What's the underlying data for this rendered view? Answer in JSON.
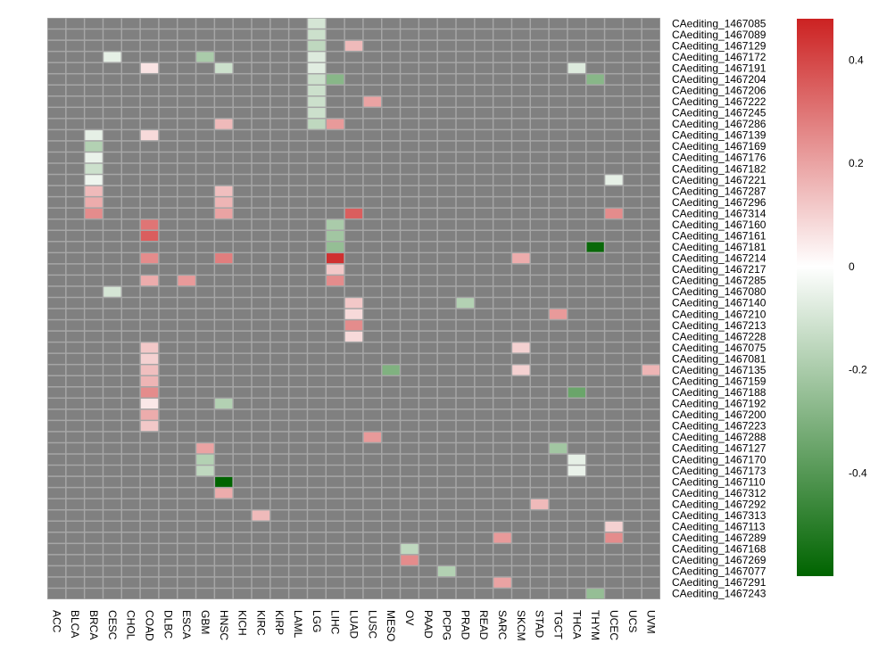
{
  "chart_data": {
    "type": "heatmap",
    "title": "",
    "xlabel": "",
    "ylabel": "",
    "columns": [
      "ACC",
      "BLCA",
      "BRCA",
      "CESC",
      "CHOL",
      "COAD",
      "DLBC",
      "ESCA",
      "GBM",
      "HNSC",
      "KICH",
      "KIRC",
      "KIRP",
      "LAML",
      "LGG",
      "LIHC",
      "LUAD",
      "LUSC",
      "MESO",
      "OV",
      "PAAD",
      "PCPG",
      "PRAD",
      "READ",
      "SARC",
      "SKCM",
      "STAD",
      "TGCT",
      "THCA",
      "THYM",
      "UCEC",
      "UCS",
      "UVM"
    ],
    "rows": [
      "CAediting_1467085",
      "CAediting_1467089",
      "CAediting_1467129",
      "CAediting_1467172",
      "CAediting_1467191",
      "CAediting_1467204",
      "CAediting_1467206",
      "CAediting_1467222",
      "CAediting_1467245",
      "CAediting_1467286",
      "CAediting_1467139",
      "CAediting_1467169",
      "CAediting_1467176",
      "CAediting_1467182",
      "CAediting_1467221",
      "CAediting_1467287",
      "CAediting_1467296",
      "CAediting_1467314",
      "CAediting_1467160",
      "CAediting_1467161",
      "CAediting_1467181",
      "CAediting_1467214",
      "CAediting_1467217",
      "CAediting_1467285",
      "CAediting_1467080",
      "CAediting_1467140",
      "CAediting_1467210",
      "CAediting_1467213",
      "CAediting_1467228",
      "CAediting_1467075",
      "CAediting_1467081",
      "CAediting_1467135",
      "CAediting_1467159",
      "CAediting_1467188",
      "CAediting_1467192",
      "CAediting_1467200",
      "CAediting_1467223",
      "CAediting_1467288",
      "CAediting_1467127",
      "CAediting_1467170",
      "CAediting_1467173",
      "CAediting_1467110",
      "CAediting_1467312",
      "CAediting_1467292",
      "CAediting_1467313",
      "CAediting_1467113",
      "CAediting_1467289",
      "CAediting_1467168",
      "CAediting_1467269",
      "CAediting_1467077",
      "CAediting_1467291",
      "CAediting_1467243"
    ],
    "values": [
      {
        "row": "CAediting_1467085",
        "col": "LGG",
        "value": -0.1
      },
      {
        "row": "CAediting_1467089",
        "col": "LGG",
        "value": -0.12
      },
      {
        "row": "CAediting_1467129",
        "col": "LGG",
        "value": -0.15
      },
      {
        "row": "CAediting_1467129",
        "col": "LUAD",
        "value": 0.15
      },
      {
        "row": "CAediting_1467172",
        "col": "CESC",
        "value": -0.06
      },
      {
        "row": "CAediting_1467172",
        "col": "GBM",
        "value": -0.2
      },
      {
        "row": "CAediting_1467172",
        "col": "LGG",
        "value": -0.08
      },
      {
        "row": "CAediting_1467191",
        "col": "COAD",
        "value": 0.06
      },
      {
        "row": "CAediting_1467191",
        "col": "HNSC",
        "value": -0.12
      },
      {
        "row": "CAediting_1467191",
        "col": "LGG",
        "value": -0.07
      },
      {
        "row": "CAediting_1467191",
        "col": "THCA",
        "value": -0.08
      },
      {
        "row": "CAediting_1467204",
        "col": "LGG",
        "value": -0.12
      },
      {
        "row": "CAediting_1467204",
        "col": "LIHC",
        "value": -0.28
      },
      {
        "row": "CAediting_1467204",
        "col": "THYM",
        "value": -0.28
      },
      {
        "row": "CAediting_1467206",
        "col": "LGG",
        "value": -0.12
      },
      {
        "row": "CAediting_1467222",
        "col": "LGG",
        "value": -0.12
      },
      {
        "row": "CAediting_1467222",
        "col": "LUSC",
        "value": 0.2
      },
      {
        "row": "CAediting_1467245",
        "col": "LGG",
        "value": -0.12
      },
      {
        "row": "CAediting_1467286",
        "col": "HNSC",
        "value": 0.15
      },
      {
        "row": "CAediting_1467286",
        "col": "LGG",
        "value": -0.15
      },
      {
        "row": "CAediting_1467286",
        "col": "LIHC",
        "value": 0.22
      },
      {
        "row": "CAediting_1467139",
        "col": "BRCA",
        "value": -0.06
      },
      {
        "row": "CAediting_1467139",
        "col": "COAD",
        "value": 0.08
      },
      {
        "row": "CAediting_1467169",
        "col": "BRCA",
        "value": -0.18
      },
      {
        "row": "CAediting_1467176",
        "col": "BRCA",
        "value": -0.05
      },
      {
        "row": "CAediting_1467182",
        "col": "BRCA",
        "value": -0.12
      },
      {
        "row": "CAediting_1467221",
        "col": "BRCA",
        "value": -0.04
      },
      {
        "row": "CAediting_1467221",
        "col": "UCEC",
        "value": -0.06
      },
      {
        "row": "CAediting_1467287",
        "col": "BRCA",
        "value": 0.15
      },
      {
        "row": "CAediting_1467287",
        "col": "HNSC",
        "value": 0.14
      },
      {
        "row": "CAediting_1467296",
        "col": "BRCA",
        "value": 0.18
      },
      {
        "row": "CAediting_1467296",
        "col": "HNSC",
        "value": 0.16
      },
      {
        "row": "CAediting_1467314",
        "col": "BRCA",
        "value": 0.25
      },
      {
        "row": "CAediting_1467314",
        "col": "HNSC",
        "value": 0.2
      },
      {
        "row": "CAediting_1467314",
        "col": "LUAD",
        "value": 0.35
      },
      {
        "row": "CAediting_1467314",
        "col": "UCEC",
        "value": 0.25
      },
      {
        "row": "CAediting_1467160",
        "col": "COAD",
        "value": 0.3
      },
      {
        "row": "CAediting_1467160",
        "col": "LIHC",
        "value": -0.2
      },
      {
        "row": "CAediting_1467161",
        "col": "COAD",
        "value": 0.35
      },
      {
        "row": "CAediting_1467161",
        "col": "LIHC",
        "value": -0.22
      },
      {
        "row": "CAediting_1467181",
        "col": "LIHC",
        "value": -0.25
      },
      {
        "row": "CAediting_1467181",
        "col": "THYM",
        "value": -0.58
      },
      {
        "row": "CAediting_1467214",
        "col": "COAD",
        "value": 0.25
      },
      {
        "row": "CAediting_1467214",
        "col": "HNSC",
        "value": 0.28
      },
      {
        "row": "CAediting_1467214",
        "col": "LIHC",
        "value": 0.45
      },
      {
        "row": "CAediting_1467214",
        "col": "SKCM",
        "value": 0.18
      },
      {
        "row": "CAediting_1467217",
        "col": "LIHC",
        "value": 0.12
      },
      {
        "row": "CAediting_1467285",
        "col": "COAD",
        "value": 0.18
      },
      {
        "row": "CAediting_1467285",
        "col": "ESCA",
        "value": 0.22
      },
      {
        "row": "CAediting_1467285",
        "col": "LIHC",
        "value": 0.25
      },
      {
        "row": "CAediting_1467080",
        "col": "CESC",
        "value": -0.1
      },
      {
        "row": "CAediting_1467140",
        "col": "LUAD",
        "value": 0.12
      },
      {
        "row": "CAediting_1467140",
        "col": "PRAD",
        "value": -0.18
      },
      {
        "row": "CAediting_1467210",
        "col": "LUAD",
        "value": 0.08
      },
      {
        "row": "CAediting_1467210",
        "col": "TGCT",
        "value": 0.22
      },
      {
        "row": "CAediting_1467213",
        "col": "LUAD",
        "value": 0.25
      },
      {
        "row": "CAediting_1467228",
        "col": "LUAD",
        "value": 0.08
      },
      {
        "row": "CAediting_1467075",
        "col": "COAD",
        "value": 0.12
      },
      {
        "row": "CAediting_1467075",
        "col": "SKCM",
        "value": 0.1
      },
      {
        "row": "CAediting_1467081",
        "col": "COAD",
        "value": 0.1
      },
      {
        "row": "CAediting_1467135",
        "col": "COAD",
        "value": 0.14
      },
      {
        "row": "CAediting_1467135",
        "col": "MESO",
        "value": -0.3
      },
      {
        "row": "CAediting_1467135",
        "col": "SKCM",
        "value": 0.1
      },
      {
        "row": "CAediting_1467135",
        "col": "UVM",
        "value": 0.16
      },
      {
        "row": "CAediting_1467159",
        "col": "COAD",
        "value": 0.16
      },
      {
        "row": "CAediting_1467188",
        "col": "COAD",
        "value": 0.25
      },
      {
        "row": "CAediting_1467188",
        "col": "THCA",
        "value": -0.35
      },
      {
        "row": "CAediting_1467192",
        "col": "COAD",
        "value": 0.05
      },
      {
        "row": "CAediting_1467192",
        "col": "HNSC",
        "value": -0.18
      },
      {
        "row": "CAediting_1467200",
        "col": "COAD",
        "value": 0.18
      },
      {
        "row": "CAediting_1467223",
        "col": "COAD",
        "value": 0.12
      },
      {
        "row": "CAediting_1467288",
        "col": "LUSC",
        "value": 0.22
      },
      {
        "row": "CAediting_1467127",
        "col": "GBM",
        "value": 0.2
      },
      {
        "row": "CAediting_1467127",
        "col": "TGCT",
        "value": -0.22
      },
      {
        "row": "CAediting_1467170",
        "col": "GBM",
        "value": -0.18
      },
      {
        "row": "CAediting_1467170",
        "col": "THCA",
        "value": -0.06
      },
      {
        "row": "CAediting_1467173",
        "col": "GBM",
        "value": -0.15
      },
      {
        "row": "CAediting_1467173",
        "col": "THCA",
        "value": -0.05
      },
      {
        "row": "CAediting_1467110",
        "col": "HNSC",
        "value": -0.6
      },
      {
        "row": "CAediting_1467312",
        "col": "HNSC",
        "value": 0.18
      },
      {
        "row": "CAediting_1467292",
        "col": "STAD",
        "value": 0.15
      },
      {
        "row": "CAediting_1467313",
        "col": "KIRC",
        "value": 0.15
      },
      {
        "row": "CAediting_1467113",
        "col": "UCEC",
        "value": 0.1
      },
      {
        "row": "CAediting_1467289",
        "col": "SARC",
        "value": 0.22
      },
      {
        "row": "CAediting_1467289",
        "col": "UCEC",
        "value": 0.25
      },
      {
        "row": "CAediting_1467168",
        "col": "OV",
        "value": -0.15
      },
      {
        "row": "CAediting_1467269",
        "col": "OV",
        "value": 0.25
      },
      {
        "row": "CAediting_1467077",
        "col": "PCPG",
        "value": -0.18
      },
      {
        "row": "CAediting_1467291",
        "col": "SARC",
        "value": 0.2
      },
      {
        "row": "CAediting_1467243",
        "col": "THYM",
        "value": -0.25
      }
    ],
    "color_scale": {
      "min": -0.6,
      "max": 0.48,
      "ticks": [
        0.4,
        0.2,
        0,
        -0.2,
        -0.4
      ],
      "tick_labels": [
        "0.4",
        "0.2",
        "0",
        "-0.2",
        "-0.4"
      ],
      "colors": {
        "low": "#006400",
        "mid": "#ffffff",
        "high": "#cc2222"
      }
    },
    "na_color": "#808080",
    "grid_line_color": "#a6a6a6"
  }
}
